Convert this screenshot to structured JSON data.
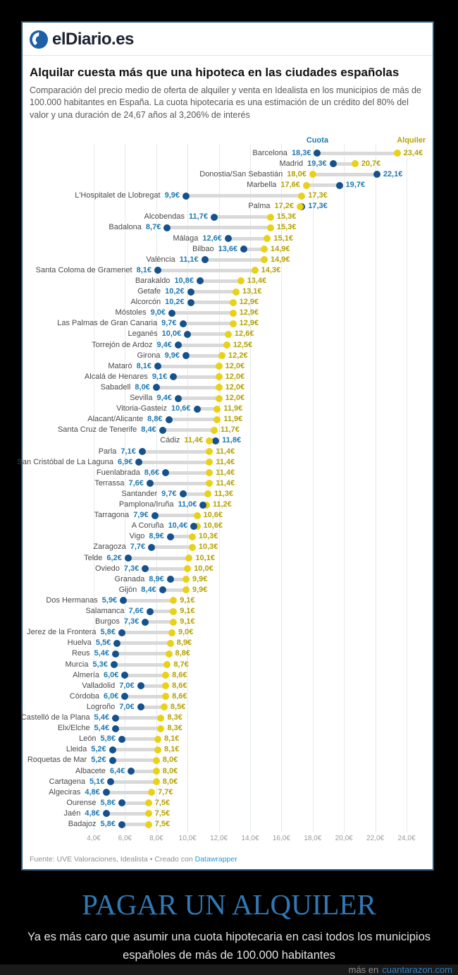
{
  "masthead": {
    "logo_text": "elDiario.es"
  },
  "chart": {
    "title": "Alquilar cuesta más que una hipoteca en las ciudades españolas",
    "subtitle": "Comparación del precio medio de oferta de alquiler y venta en Idealista en los municipios de más de 100.000 habitantes en España. La cuota hipotecaria es una estimación de un crédito del 80% del valor y una duración de 24,67 años al 3,206% de interés",
    "footer_source": "Fuente: UVE Valoraciones, Idealista • Creado con ",
    "footer_link": "Datawrapper"
  },
  "colors": {
    "cuota_dot": "#15518d",
    "cuota_text": "#1f78b0",
    "alquiler_dot": "#e9d118",
    "alquiler_text": "#b5a004",
    "bar": "#d9d9d9",
    "link_blue": "#1e9ada",
    "caption_blue": "#3079b5",
    "site_link_blue": "#2d80c2"
  },
  "chart_data": {
    "type": "dumbbell",
    "unit_suffix": "€",
    "xlim": [
      4,
      24
    ],
    "x_ticks": [
      4,
      6,
      8,
      10,
      12,
      14,
      16,
      18,
      20,
      22,
      24
    ],
    "x_tick_labels": [
      "4,0€",
      "6,0€",
      "8,0€",
      "10,0€",
      "12,0€",
      "14,0€",
      "16,0€",
      "18,0€",
      "20,0€",
      "22,0€",
      "24,0€"
    ],
    "legend": {
      "cuota": "Cuota",
      "alquiler": "Alquiler"
    },
    "grid": true,
    "rows": [
      {
        "city": "Barcelona",
        "cuota": 18.3,
        "alquiler": 23.4
      },
      {
        "city": "Madrid",
        "cuota": 19.3,
        "alquiler": 20.7
      },
      {
        "city": "Donostia/San Sebastián",
        "cuota": 22.1,
        "alquiler": 18.0
      },
      {
        "city": "Marbella",
        "cuota": 19.7,
        "alquiler": 17.6
      },
      {
        "city": "L'Hospitalet de Llobregat",
        "cuota": 9.9,
        "alquiler": 17.3
      },
      {
        "city": "Palma",
        "cuota": 17.3,
        "alquiler": 17.2
      },
      {
        "city": "Alcobendas",
        "cuota": 11.7,
        "alquiler": 15.3
      },
      {
        "city": "Badalona",
        "cuota": 8.7,
        "alquiler": 15.3
      },
      {
        "city": "Málaga",
        "cuota": 12.6,
        "alquiler": 15.1
      },
      {
        "city": "Bilbao",
        "cuota": 13.6,
        "alquiler": 14.9
      },
      {
        "city": "València",
        "cuota": 11.1,
        "alquiler": 14.9
      },
      {
        "city": "Santa Coloma de Gramenet",
        "cuota": 8.1,
        "alquiler": 14.3
      },
      {
        "city": "Barakaldo",
        "cuota": 10.8,
        "alquiler": 13.4
      },
      {
        "city": "Getafe",
        "cuota": 10.2,
        "alquiler": 13.1
      },
      {
        "city": "Alcorcón",
        "cuota": 10.2,
        "alquiler": 12.9
      },
      {
        "city": "Móstoles",
        "cuota": 9.0,
        "alquiler": 12.9
      },
      {
        "city": "Las Palmas de Gran Canaria",
        "cuota": 9.7,
        "alquiler": 12.9
      },
      {
        "city": "Leganés",
        "cuota": 10.0,
        "alquiler": 12.6
      },
      {
        "city": "Torrejón de Ardoz",
        "cuota": 9.4,
        "alquiler": 12.5
      },
      {
        "city": "Girona",
        "cuota": 9.9,
        "alquiler": 12.2
      },
      {
        "city": "Mataró",
        "cuota": 8.1,
        "alquiler": 12.0
      },
      {
        "city": "Alcalá de Henares",
        "cuota": 9.1,
        "alquiler": 12.0
      },
      {
        "city": "Sabadell",
        "cuota": 8.0,
        "alquiler": 12.0
      },
      {
        "city": "Sevilla",
        "cuota": 9.4,
        "alquiler": 12.0
      },
      {
        "city": "Vitoria-Gasteiz",
        "cuota": 10.6,
        "alquiler": 11.9
      },
      {
        "city": "Alacant/Alicante",
        "cuota": 8.8,
        "alquiler": 11.9
      },
      {
        "city": "Santa Cruz de Tenerife",
        "cuota": 8.4,
        "alquiler": 11.7
      },
      {
        "city": "Cádiz",
        "cuota": 11.8,
        "alquiler": 11.4
      },
      {
        "city": "Parla",
        "cuota": 7.1,
        "alquiler": 11.4
      },
      {
        "city": "San Cristóbal de La Laguna",
        "cuota": 6.9,
        "alquiler": 11.4
      },
      {
        "city": "Fuenlabrada",
        "cuota": 8.6,
        "alquiler": 11.4
      },
      {
        "city": "Terrassa",
        "cuota": 7.6,
        "alquiler": 11.4
      },
      {
        "city": "Santander",
        "cuota": 9.7,
        "alquiler": 11.3
      },
      {
        "city": "Pamplona/Iruña",
        "cuota": 11.0,
        "alquiler": 11.2
      },
      {
        "city": "Tarragona",
        "cuota": 7.9,
        "alquiler": 10.6
      },
      {
        "city": "A Coruña",
        "cuota": 10.4,
        "alquiler": 10.6
      },
      {
        "city": "Vigo",
        "cuota": 8.9,
        "alquiler": 10.3
      },
      {
        "city": "Zaragoza",
        "cuota": 7.7,
        "alquiler": 10.3
      },
      {
        "city": "Telde",
        "cuota": 6.2,
        "alquiler": 10.1
      },
      {
        "city": "Oviedo",
        "cuota": 7.3,
        "alquiler": 10.0
      },
      {
        "city": "Granada",
        "cuota": 8.9,
        "alquiler": 9.9
      },
      {
        "city": "Gijón",
        "cuota": 8.4,
        "alquiler": 9.9
      },
      {
        "city": "Dos Hermanas",
        "cuota": 5.9,
        "alquiler": 9.1
      },
      {
        "city": "Salamanca",
        "cuota": 7.6,
        "alquiler": 9.1
      },
      {
        "city": "Burgos",
        "cuota": 7.3,
        "alquiler": 9.1
      },
      {
        "city": "Jerez de la Frontera",
        "cuota": 5.8,
        "alquiler": 9.0
      },
      {
        "city": "Huelva",
        "cuota": 5.5,
        "alquiler": 8.9
      },
      {
        "city": "Reus",
        "cuota": 5.4,
        "alquiler": 8.8
      },
      {
        "city": "Murcia",
        "cuota": 5.3,
        "alquiler": 8.7
      },
      {
        "city": "Almería",
        "cuota": 6.0,
        "alquiler": 8.6
      },
      {
        "city": "Valladolid",
        "cuota": 7.0,
        "alquiler": 8.6
      },
      {
        "city": "Córdoba",
        "cuota": 6.0,
        "alquiler": 8.6
      },
      {
        "city": "Logroño",
        "cuota": 7.0,
        "alquiler": 8.5
      },
      {
        "city": "Castelló de la Plana",
        "cuota": 5.4,
        "alquiler": 8.3
      },
      {
        "city": "Elx/Elche",
        "cuota": 5.4,
        "alquiler": 8.3
      },
      {
        "city": "León",
        "cuota": 5.8,
        "alquiler": 8.1
      },
      {
        "city": "Lleida",
        "cuota": 5.2,
        "alquiler": 8.1
      },
      {
        "city": "Roquetas de Mar",
        "cuota": 5.2,
        "alquiler": 8.0
      },
      {
        "city": "Albacete",
        "cuota": 6.4,
        "alquiler": 8.0
      },
      {
        "city": "Cartagena",
        "cuota": 5.1,
        "alquiler": 8.0
      },
      {
        "city": "Algeciras",
        "cuota": 4.8,
        "alquiler": 7.7
      },
      {
        "city": "Ourense",
        "cuota": 5.8,
        "alquiler": 7.5
      },
      {
        "city": "Jaén",
        "cuota": 4.8,
        "alquiler": 7.5
      },
      {
        "city": "Badajoz",
        "cuota": 5.8,
        "alquiler": 7.5
      }
    ]
  },
  "caption": {
    "title": "PAGAR UN ALQUILER",
    "text": "Ya es más caro que asumir una cuota hipotecaria en casi todos los municipios españoles de más de 100.000 habitantes",
    "more_prefix": "más en",
    "site": "cuantarazon.com"
  }
}
